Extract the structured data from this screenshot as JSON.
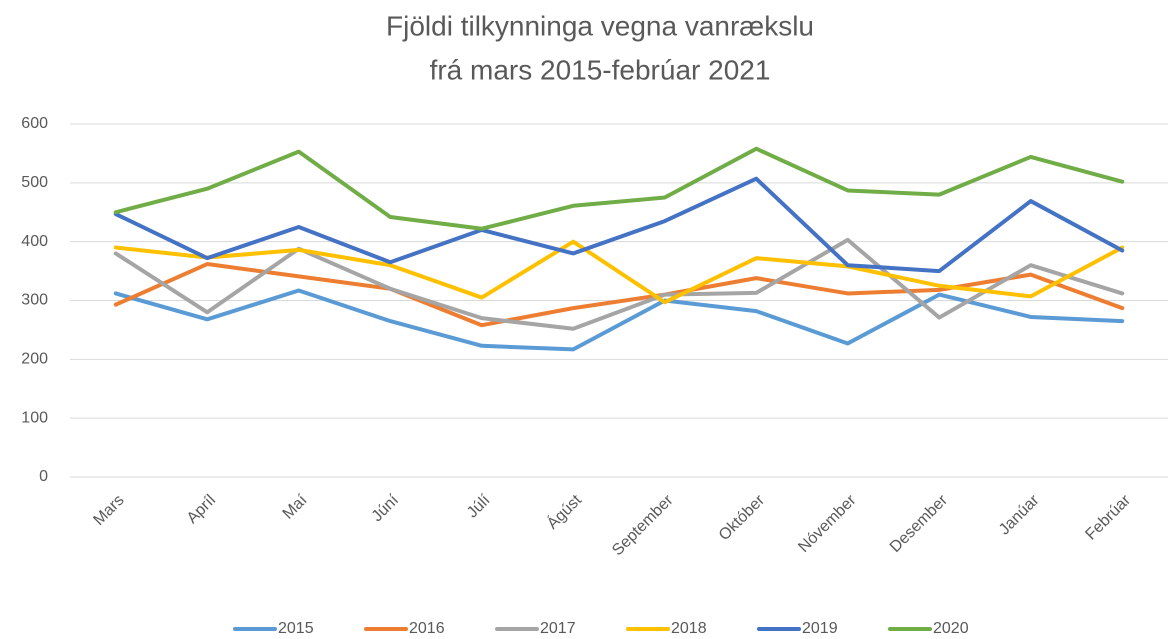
{
  "chart_data": {
    "type": "line",
    "title": "Fjöldi tilkynninga vegna vanrækslu",
    "subtitle": "frá mars 2015-febrúar 2021",
    "categories": [
      "Mars",
      "Apríl",
      "Maí",
      "Júní",
      "Júlí",
      "Ágúst",
      "September",
      "Október",
      "Nóvember",
      "Desember",
      "Janúar",
      "Febrúar"
    ],
    "series": [
      {
        "name": "2015",
        "color": "#5b9bd5",
        "values": [
          312,
          268,
          317,
          265,
          223,
          217,
          300,
          282,
          227,
          310,
          272,
          265
        ]
      },
      {
        "name": "2016",
        "color": "#ed7d31",
        "values": [
          293,
          362,
          341,
          320,
          258,
          287,
          310,
          338,
          312,
          318,
          344,
          287
        ]
      },
      {
        "name": "2017",
        "color": "#a5a5a5",
        "values": [
          380,
          280,
          388,
          320,
          270,
          252,
          310,
          313,
          403,
          271,
          360,
          312
        ]
      },
      {
        "name": "2018",
        "color": "#ffc000",
        "values": [
          390,
          373,
          386,
          360,
          305,
          400,
          297,
          372,
          358,
          325,
          307,
          390
        ]
      },
      {
        "name": "2019",
        "color": "#4472c4",
        "values": [
          447,
          372,
          425,
          365,
          420,
          380,
          435,
          507,
          360,
          350,
          469,
          385
        ]
      },
      {
        "name": "2020",
        "color": "#70ad47",
        "values": [
          450,
          490,
          553,
          442,
          422,
          461,
          475,
          558,
          487,
          480,
          544,
          502
        ]
      }
    ],
    "ylim": [
      0,
      600
    ],
    "yticks": [
      0,
      100,
      200,
      300,
      400,
      500,
      600
    ],
    "grid": true,
    "legend": "bottom"
  }
}
